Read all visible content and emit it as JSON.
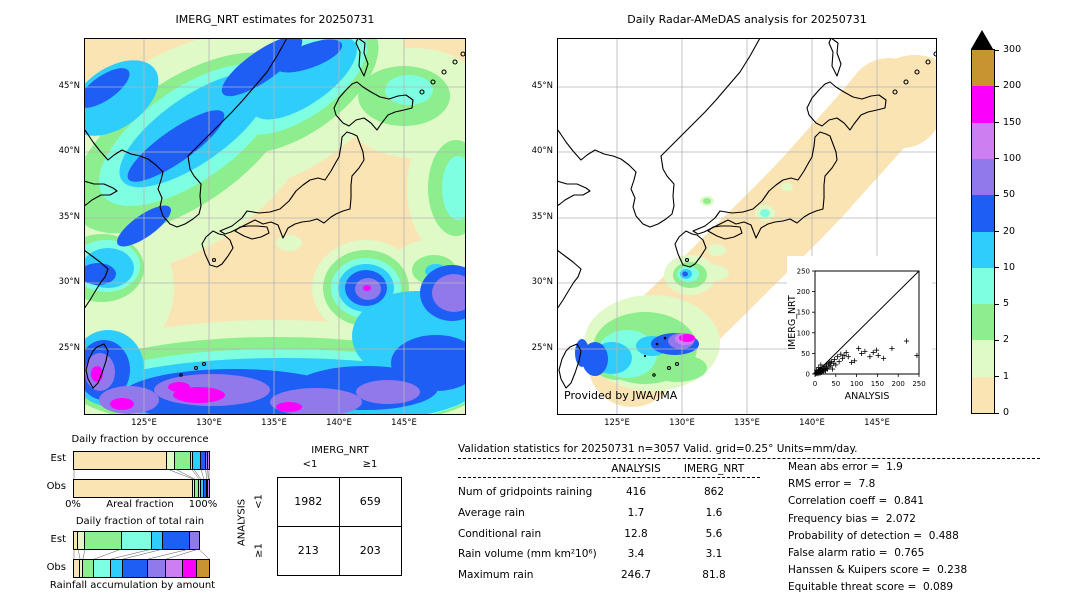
{
  "palette": {
    "peach": "#FBE4B4",
    "palegreen": "#DFF9C7",
    "green": "#8DEE8D",
    "lightcyan": "#7FFFE1",
    "cyan": "#2FCDFB",
    "blue": "#1E5EF5",
    "bluepurple": "#9179EC",
    "violet": "#CD7FF2",
    "magenta": "#FB00FB",
    "tan": "#C7942F",
    "overmax": "#000000"
  },
  "left_map": {
    "title": "IMERG_NRT estimates for 20250731",
    "lat_labels": [
      "45°N",
      "40°N",
      "35°N",
      "30°N",
      "25°N"
    ],
    "lon_labels": [
      "125°E",
      "130°E",
      "135°E",
      "140°E",
      "145°E"
    ]
  },
  "right_map": {
    "title": "Daily Radar-AMeDAS analysis for 20250731",
    "lat_labels": [
      "45°N",
      "40°N",
      "35°N",
      "30°N",
      "25°N"
    ],
    "lon_labels": [
      "125°E",
      "130°E",
      "135°E",
      "140°E",
      "145°E"
    ],
    "credit": "Provided by JWA/JMA"
  },
  "colorbar": {
    "tick_labels": [
      "0",
      "1",
      "2",
      "5",
      "10",
      "20",
      "50",
      "100",
      "150",
      "200",
      "300"
    ],
    "segment_colors": [
      "peach",
      "palegreen",
      "green",
      "lightcyan",
      "cyan",
      "blue",
      "bluepurple",
      "violet",
      "magenta",
      "tan"
    ],
    "over_color": "overmax",
    "units": "mm/day"
  },
  "chart_data": [
    {
      "id": "inset_scatter",
      "type": "scatter",
      "xlabel": "ANALYSIS",
      "ylabel": "IMERG_NRT",
      "xlim": [
        0,
        250
      ],
      "ylim": [
        0,
        250
      ],
      "ticks": [
        0,
        50,
        100,
        150,
        200,
        250
      ],
      "diagonal": true,
      "points": [
        [
          2,
          1
        ],
        [
          3,
          4
        ],
        [
          4,
          2
        ],
        [
          4,
          9
        ],
        [
          5,
          6
        ],
        [
          6,
          3
        ],
        [
          7,
          1
        ],
        [
          8,
          8
        ],
        [
          9,
          4
        ],
        [
          9,
          16
        ],
        [
          10,
          2
        ],
        [
          10,
          10
        ],
        [
          12,
          6
        ],
        [
          13,
          3
        ],
        [
          14,
          12
        ],
        [
          14,
          22
        ],
        [
          15,
          7
        ],
        [
          16,
          4
        ],
        [
          17,
          14
        ],
        [
          18,
          9
        ],
        [
          20,
          5
        ],
        [
          21,
          15
        ],
        [
          22,
          10
        ],
        [
          24,
          18
        ],
        [
          25,
          8
        ],
        [
          27,
          14
        ],
        [
          28,
          22
        ],
        [
          30,
          12
        ],
        [
          32,
          25
        ],
        [
          34,
          17
        ],
        [
          36,
          28
        ],
        [
          38,
          20
        ],
        [
          40,
          30
        ],
        [
          42,
          12
        ],
        [
          45,
          26
        ],
        [
          47,
          35
        ],
        [
          50,
          22
        ],
        [
          54,
          42
        ],
        [
          58,
          30
        ],
        [
          62,
          48
        ],
        [
          66,
          38
        ],
        [
          70,
          45
        ],
        [
          75,
          52
        ],
        [
          80,
          42
        ],
        [
          88,
          28
        ],
        [
          95,
          32
        ],
        [
          105,
          62
        ],
        [
          112,
          50
        ],
        [
          120,
          55
        ],
        [
          132,
          42
        ],
        [
          140,
          52
        ],
        [
          148,
          58
        ],
        [
          152,
          45
        ],
        [
          165,
          38
        ],
        [
          185,
          62
        ],
        [
          220,
          80
        ],
        [
          245,
          45
        ]
      ]
    },
    {
      "id": "occurrence",
      "type": "bar",
      "title": "Daily fraction by occurence",
      "xlabel": "Areal fraction",
      "x_axis_labels": [
        "0%",
        "100%"
      ],
      "rows": [
        {
          "label": "Est",
          "segments": [
            [
              "peach",
              0.69
            ],
            [
              "palegreen",
              0.058
            ],
            [
              "green",
              0.122
            ],
            [
              "lightcyan",
              0.015
            ],
            [
              "cyan",
              0.055
            ],
            [
              "blue",
              0.035
            ],
            [
              "bluepurple",
              0.015
            ],
            [
              "violet",
              0.01
            ]
          ]
        },
        {
          "label": "Obs",
          "segments": [
            [
              "peach",
              0.882
            ],
            [
              "palegreen",
              0.012
            ],
            [
              "green",
              0.032
            ],
            [
              "lightcyan",
              0.014
            ],
            [
              "cyan",
              0.022
            ],
            [
              "blue",
              0.022
            ],
            [
              "bluepurple",
              0.01
            ],
            [
              "violet",
              0.006
            ]
          ]
        }
      ]
    },
    {
      "id": "totalrain",
      "type": "bar",
      "title": "Daily fraction of total rain",
      "caption": "Rainfall accumulation by amount",
      "rows": [
        {
          "label": "Est",
          "segments": [
            [
              "peach",
              0.03
            ],
            [
              "palegreen",
              0.053
            ],
            [
              "green",
              0.27
            ],
            [
              "lightcyan",
              0.225
            ],
            [
              "cyan",
              0.083
            ],
            [
              "blue",
              0.195
            ],
            [
              "bluepurple",
              0.068
            ]
          ]
        },
        {
          "label": "Obs",
          "segments": [
            [
              "peach",
              0.045
            ],
            [
              "palegreen",
              0.02
            ],
            [
              "green",
              0.085
            ],
            [
              "lightcyan",
              0.125
            ],
            [
              "cyan",
              0.09
            ],
            [
              "blue",
              0.185
            ],
            [
              "bluepurple",
              0.135
            ],
            [
              "violet",
              0.125
            ],
            [
              "magenta",
              0.1
            ],
            [
              "tan",
              0.09
            ]
          ]
        }
      ]
    },
    {
      "id": "contingency",
      "type": "table",
      "col_group": "IMERG_NRT",
      "row_group": "ANALYSIS",
      "col_labels": [
        "<1",
        "≥1"
      ],
      "row_labels": [
        "<1",
        "≥1"
      ],
      "values": [
        [
          "1982",
          "659"
        ],
        [
          "213",
          "203"
        ]
      ]
    },
    {
      "id": "validation",
      "type": "table",
      "title": "Validation statistics for 20250731  n=3057 Valid. grid=0.25° Units=mm/day.",
      "columns": [
        "ANALYSIS",
        "IMERG_NRT"
      ],
      "rows": [
        [
          "Num of gridpoints raining",
          "416",
          "862"
        ],
        [
          "Average rain",
          "1.7",
          "1.6"
        ],
        [
          "Conditional rain",
          "12.8",
          "5.6"
        ],
        [
          "Rain volume (mm km²10⁶)",
          "3.4",
          "3.1"
        ],
        [
          "Maximum rain",
          "246.7",
          "81.8"
        ]
      ]
    },
    {
      "id": "metrics",
      "type": "table",
      "rows": [
        [
          "Mean abs error",
          "1.9"
        ],
        [
          "RMS error",
          "7.8"
        ],
        [
          "Correlation coeff",
          "0.841"
        ],
        [
          "Frequency bias",
          "2.072"
        ],
        [
          "Probability of detection",
          "0.488"
        ],
        [
          "False alarm ratio",
          "0.765"
        ],
        [
          "Hanssen & Kuipers score",
          "0.238"
        ],
        [
          "Equitable threat score",
          "0.089"
        ]
      ]
    }
  ]
}
